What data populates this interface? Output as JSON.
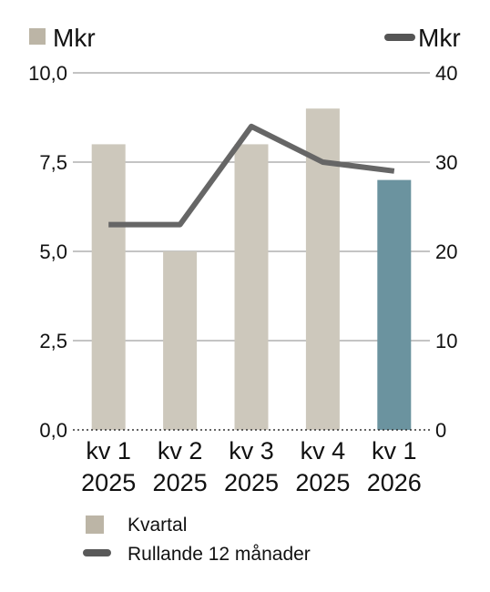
{
  "chart_data": {
    "type": "bar",
    "categories": [
      [
        "kv 1",
        "2025"
      ],
      [
        "kv 2",
        "2025"
      ],
      [
        "kv 3",
        "2025"
      ],
      [
        "kv 4",
        "2025"
      ],
      [
        "kv 1",
        "2026"
      ]
    ],
    "left_axis": {
      "unit": "Mkr",
      "ylim": [
        0,
        10
      ],
      "ticks": [
        "10,0",
        "7,5",
        "5,0",
        "2,5",
        "0,0"
      ],
      "tick_values": [
        10,
        7.5,
        5,
        2.5,
        0
      ]
    },
    "right_axis": {
      "unit": "Mkr",
      "ylim": [
        0,
        40
      ],
      "ticks": [
        "40",
        "30",
        "20",
        "10",
        "0"
      ],
      "tick_values": [
        40,
        30,
        20,
        10,
        0
      ]
    },
    "series": [
      {
        "name": "Kvartal",
        "type": "bar",
        "axis": "left",
        "values": [
          8.0,
          5.0,
          8.0,
          9.0,
          7.0
        ],
        "color": "#cdc8bc",
        "highlight_color": "#6b939f",
        "highlight_index": 4
      },
      {
        "name": "Rullande 12 månader",
        "type": "line",
        "axis": "right",
        "values": [
          23,
          23,
          34,
          30,
          29
        ],
        "color": "#666666"
      }
    ],
    "legend": {
      "placement": "bottom-left",
      "items": [
        {
          "label": "Kvartal",
          "swatch": "square",
          "color": "#bcb5a6"
        },
        {
          "label": "Rullande 12 månader",
          "swatch": "line",
          "color": "#595959"
        }
      ]
    },
    "unit_legend": {
      "left": {
        "label": "Mkr",
        "color": "#bcb5a6"
      },
      "right": {
        "label": "Mkr",
        "color": "#555555"
      }
    },
    "grid": true,
    "baseline_style": "dotted"
  }
}
